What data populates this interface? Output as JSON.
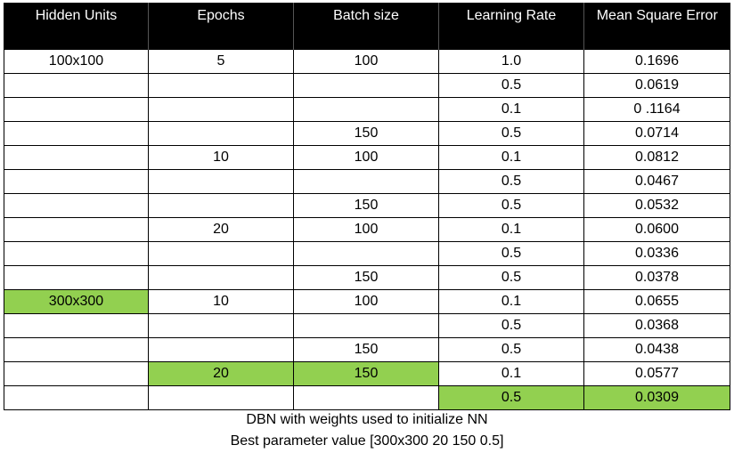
{
  "table": {
    "headers": [
      "Hidden Units",
      "Epochs",
      "Batch size",
      "Learning Rate",
      "Mean Square Error"
    ],
    "rows": [
      [
        "100x100",
        "5",
        "100",
        "1.0",
        "0.1696"
      ],
      [
        "",
        "",
        "",
        "0.5",
        "0.0619"
      ],
      [
        "",
        "",
        "",
        "0.1",
        "0 .1164"
      ],
      [
        "",
        "",
        "150",
        "0.5",
        "0.0714"
      ],
      [
        "",
        "10",
        "100",
        "0.1",
        "0.0812"
      ],
      [
        "",
        "",
        "",
        "0.5",
        "0.0467"
      ],
      [
        "",
        "",
        "150",
        "0.5",
        "0.0532"
      ],
      [
        "",
        "20",
        "100",
        "0.1",
        "0.0600"
      ],
      [
        "",
        "",
        "",
        "0.5",
        "0.0336"
      ],
      [
        "",
        "",
        "150",
        "0.5",
        "0.0378"
      ],
      [
        "300x300",
        "10",
        "100",
        "0.1",
        "0.0655"
      ],
      [
        "",
        "",
        "",
        "0.5",
        "0.0368"
      ],
      [
        "",
        "",
        "150",
        "0.5",
        "0.0438"
      ],
      [
        "",
        "20",
        "150",
        "0.1",
        "0.0577"
      ],
      [
        "",
        "",
        "",
        "0.5",
        "0.0309"
      ]
    ],
    "highlighted_cells": [
      [
        10,
        0
      ],
      [
        13,
        1
      ],
      [
        13,
        2
      ],
      [
        14,
        3
      ],
      [
        14,
        4
      ]
    ],
    "highlight_color": "#92d050",
    "header_background": "#000000",
    "header_text_color": "#ffffff"
  },
  "captions": {
    "line1": "DBN with weights used to initialize NN",
    "line2": "Best parameter value [300x300 20 150 0.5]"
  }
}
